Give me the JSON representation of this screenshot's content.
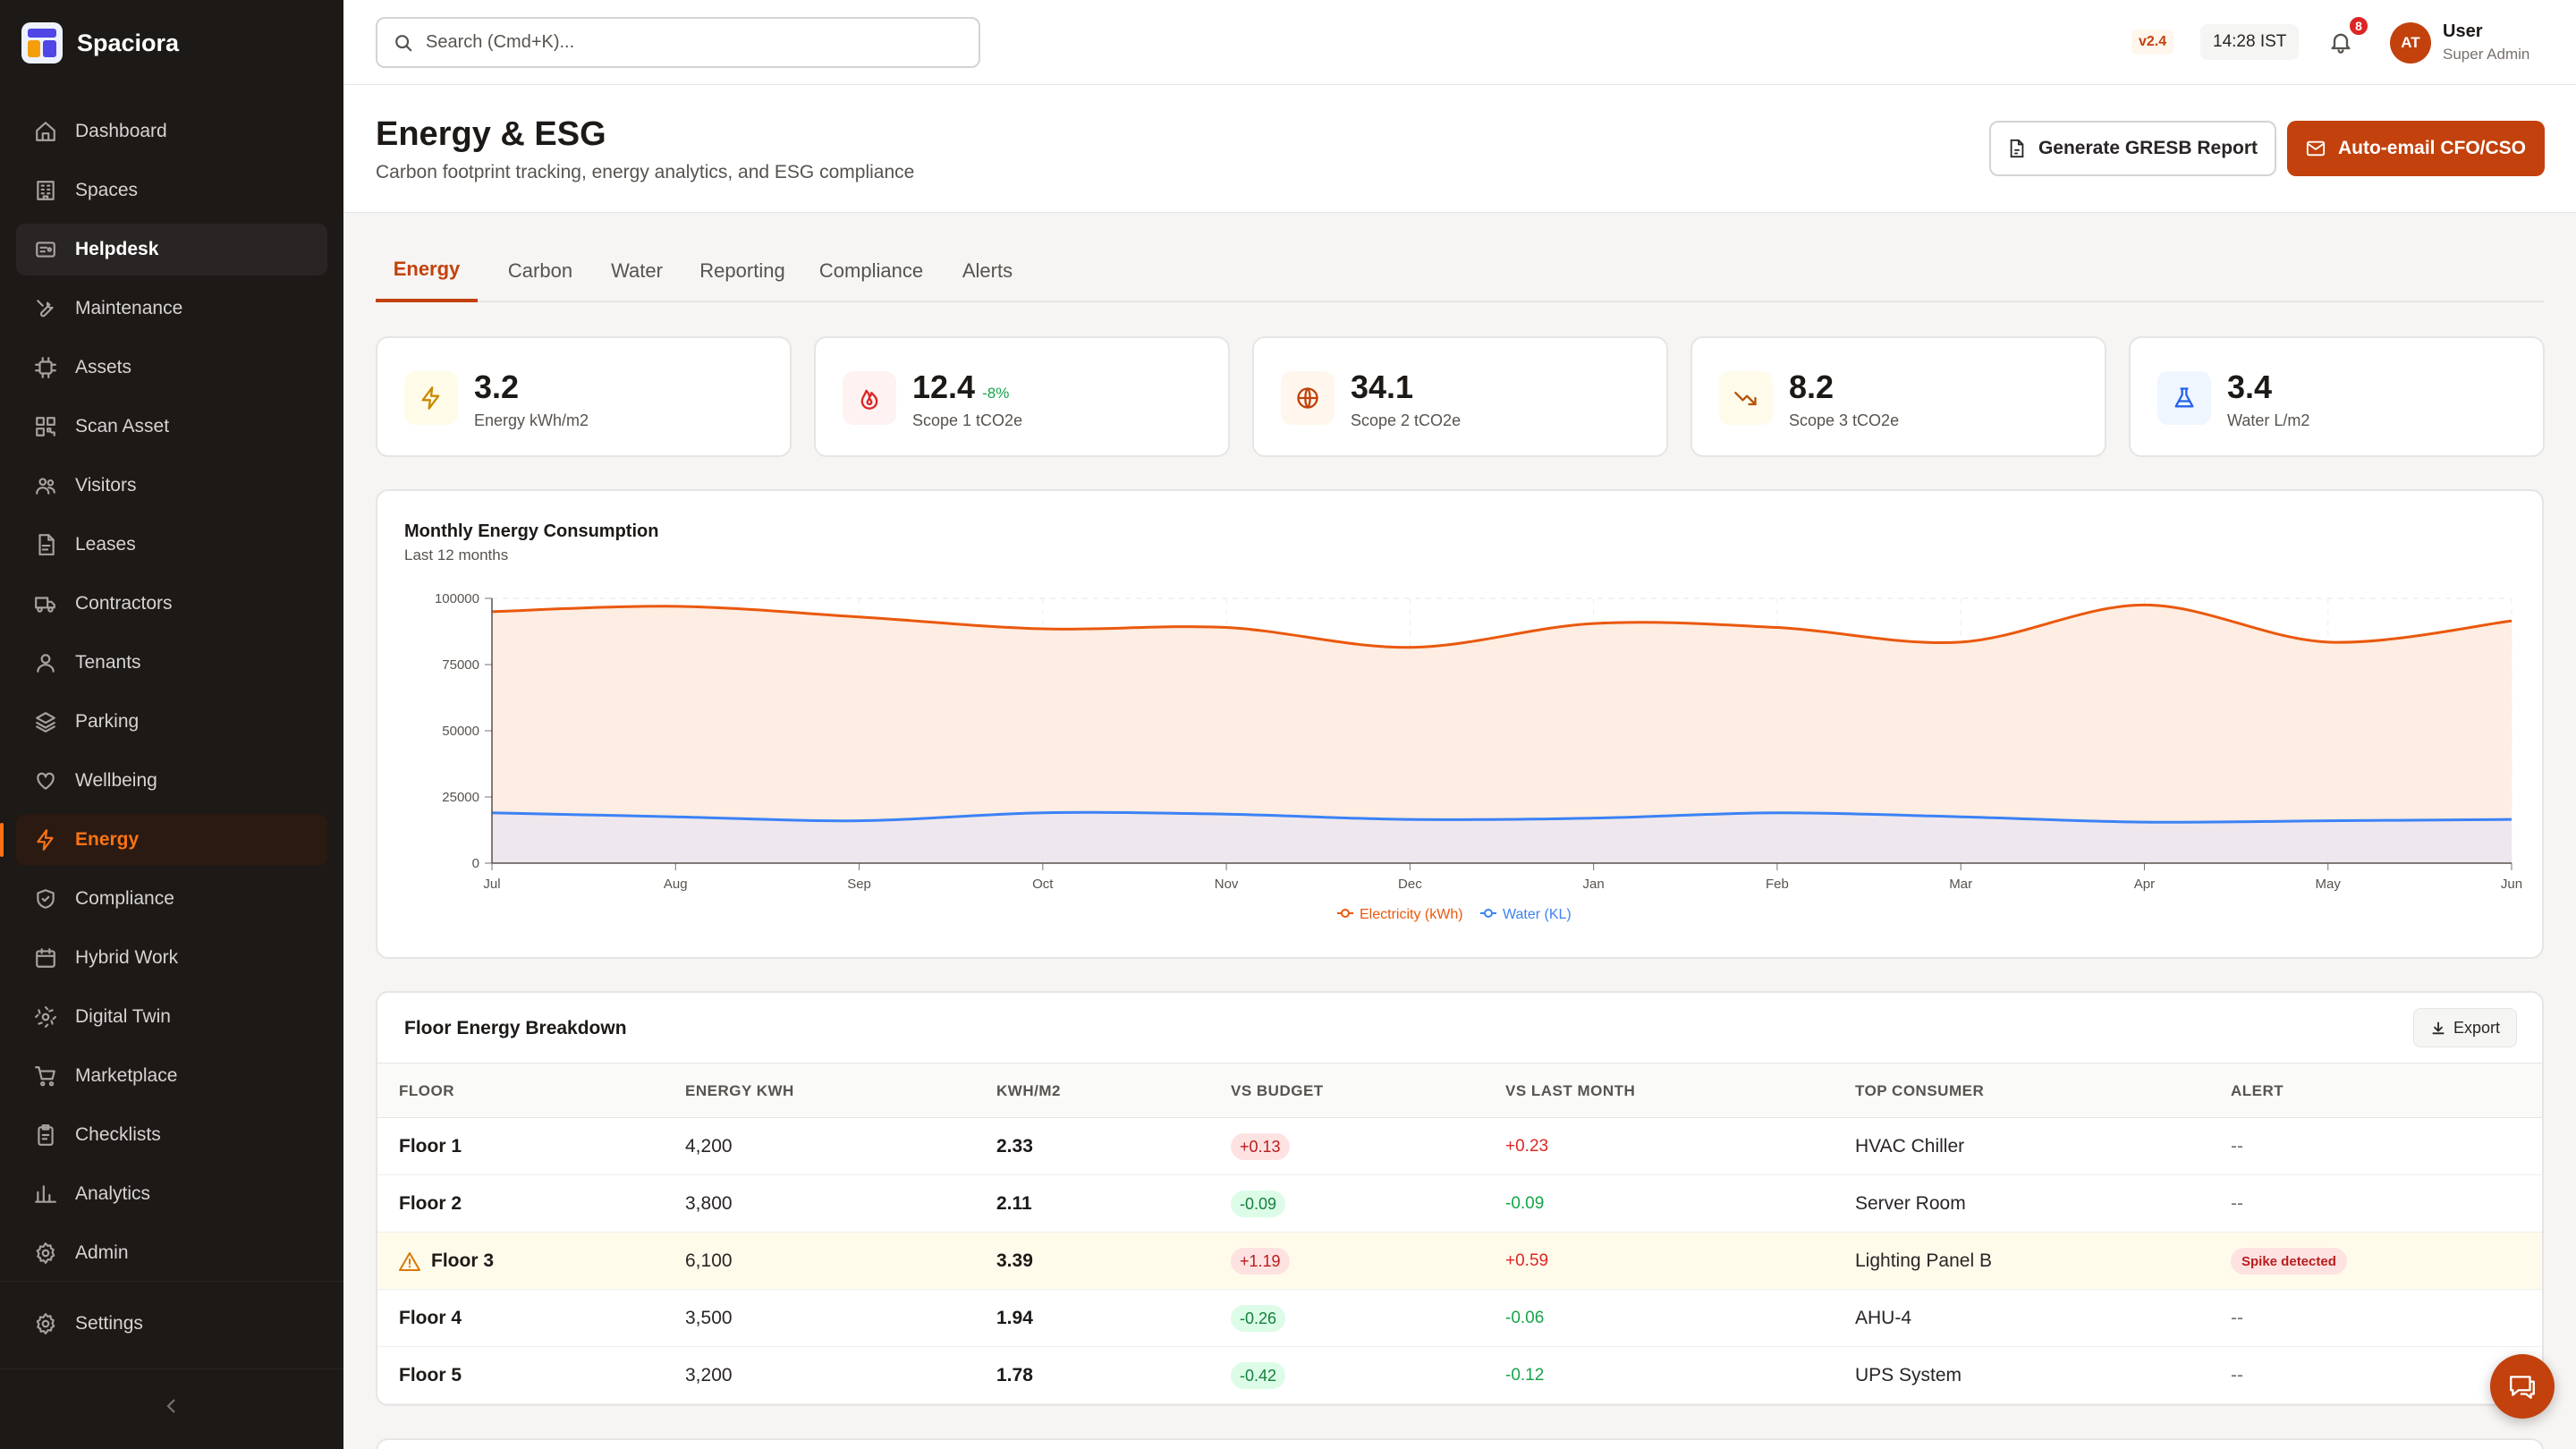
{
  "brand": {
    "name": "Spaciora",
    "logo_icon": "grid-logo-icon"
  },
  "sidebar": {
    "items": [
      {
        "label": "Dashboard",
        "icon": "home-icon",
        "state": ""
      },
      {
        "label": "Spaces",
        "icon": "building-icon",
        "state": ""
      },
      {
        "label": "Helpdesk",
        "icon": "ticket-icon",
        "state": "hover"
      },
      {
        "label": "Maintenance",
        "icon": "wrench-icon",
        "state": ""
      },
      {
        "label": "Assets",
        "icon": "chip-icon",
        "state": ""
      },
      {
        "label": "Scan Asset",
        "icon": "qr-icon",
        "state": ""
      },
      {
        "label": "Visitors",
        "icon": "users-icon",
        "state": ""
      },
      {
        "label": "Leases",
        "icon": "file-icon",
        "state": ""
      },
      {
        "label": "Contractors",
        "icon": "truck-icon",
        "state": ""
      },
      {
        "label": "Tenants",
        "icon": "user-icon",
        "state": ""
      },
      {
        "label": "Parking",
        "icon": "layers-icon",
        "state": ""
      },
      {
        "label": "Wellbeing",
        "icon": "heart-icon",
        "state": ""
      },
      {
        "label": "Energy",
        "icon": "bolt-icon",
        "state": "active"
      },
      {
        "label": "Compliance",
        "icon": "shield-icon",
        "state": ""
      },
      {
        "label": "Hybrid Work",
        "icon": "calendar-icon",
        "state": ""
      },
      {
        "label": "Digital Twin",
        "icon": "cube-icon",
        "state": ""
      },
      {
        "label": "Marketplace",
        "icon": "cart-icon",
        "state": ""
      },
      {
        "label": "Checklists",
        "icon": "clipboard-icon",
        "state": ""
      },
      {
        "label": "Analytics",
        "icon": "bar-chart-icon",
        "state": ""
      },
      {
        "label": "Admin",
        "icon": "gear-icon",
        "state": ""
      }
    ],
    "settings_label": "Settings",
    "collapse_icon": "chevron-left-icon"
  },
  "topbar": {
    "search_placeholder": "Search (Cmd+K)...",
    "version": "v2.4",
    "time": "14:28 IST",
    "notifications_count": "8",
    "avatar_initials": "AT",
    "user_name": "User",
    "user_role": "Super Admin"
  },
  "header": {
    "title": "Energy & ESG",
    "subtitle": "Carbon footprint tracking, energy analytics, and ESG compliance",
    "gresb_button": "Generate GRESB Report",
    "email_button": "Auto-email CFO/CSO"
  },
  "tabs": [
    "Energy",
    "Carbon",
    "Water",
    "Reporting",
    "Compliance",
    "Alerts"
  ],
  "active_tab": "Energy",
  "kpis": [
    {
      "value": "3.2",
      "delta": "",
      "label": "Energy kWh/m2",
      "icon": "bolt-icon",
      "color": "#ca8a04",
      "bg": "#fefce8"
    },
    {
      "value": "12.4",
      "delta": "-8%",
      "label": "Scope 1 tCO2e",
      "icon": "flame-icon",
      "color": "#dc2626",
      "bg": "#fef2f2"
    },
    {
      "value": "34.1",
      "delta": "",
      "label": "Scope 2 tCO2e",
      "icon": "globe-icon",
      "color": "#c2410c",
      "bg": "#fff7ed"
    },
    {
      "value": "8.2",
      "delta": "",
      "label": "Scope 3 tCO2e",
      "icon": "trend-down-icon",
      "color": "#b45309",
      "bg": "#fffbeb"
    },
    {
      "value": "3.4",
      "delta": "",
      "label": "Water L/m2",
      "icon": "flask-icon",
      "color": "#2563eb",
      "bg": "#eff6ff"
    }
  ],
  "chart": {
    "title": "Monthly Energy Consumption",
    "subtitle": "Last 12 months"
  },
  "chart_data": {
    "type": "area",
    "categories": [
      "Jul",
      "Aug",
      "Sep",
      "Oct",
      "Nov",
      "Dec",
      "Jan",
      "Feb",
      "Mar",
      "Apr",
      "May",
      "Jun"
    ],
    "series": [
      {
        "name": "Electricity (kWh)",
        "color": "#ea580c",
        "values": [
          95000,
          97000,
          93000,
          88500,
          89000,
          81500,
          90500,
          89000,
          83500,
          97500,
          83500,
          91500
        ]
      },
      {
        "name": "Water (KL)",
        "color": "#3b82f6",
        "values": [
          19000,
          17500,
          16000,
          19000,
          18500,
          16500,
          17000,
          19000,
          17500,
          15500,
          16000,
          16500
        ]
      }
    ],
    "yticks": [
      0,
      25000,
      50000,
      75000,
      100000
    ],
    "ylim": [
      0,
      100000
    ],
    "grid": true,
    "legend": "bottom"
  },
  "table": {
    "title": "Floor Energy Breakdown",
    "export_label": "Export",
    "columns": [
      "FLOOR",
      "ENERGY KWH",
      "KWH/M2",
      "VS BUDGET",
      "VS LAST MONTH",
      "TOP CONSUMER",
      "ALERT"
    ],
    "rows": [
      {
        "floor": "Floor 1",
        "energy": "4,200",
        "kwhm2": "2.33",
        "budget": "+0.13",
        "last": "+0.23",
        "consumer": "HVAC Chiller",
        "alert": "--",
        "warn": false
      },
      {
        "floor": "Floor 2",
        "energy": "3,800",
        "kwhm2": "2.11",
        "budget": "-0.09",
        "last": "-0.09",
        "consumer": "Server Room",
        "alert": "--",
        "warn": false
      },
      {
        "floor": "Floor 3",
        "energy": "6,100",
        "kwhm2": "3.39",
        "budget": "+1.19",
        "last": "+0.59",
        "consumer": "Lighting Panel B",
        "alert": "Spike detected",
        "warn": true
      },
      {
        "floor": "Floor 4",
        "energy": "3,500",
        "kwhm2": "1.94",
        "budget": "-0.26",
        "last": "-0.06",
        "consumer": "AHU-4",
        "alert": "--",
        "warn": false
      },
      {
        "floor": "Floor 5",
        "energy": "3,200",
        "kwhm2": "1.78",
        "budget": "-0.42",
        "last": "-0.12",
        "consumer": "UPS System",
        "alert": "--",
        "warn": false
      }
    ]
  },
  "chat_icon": "chat-icon"
}
